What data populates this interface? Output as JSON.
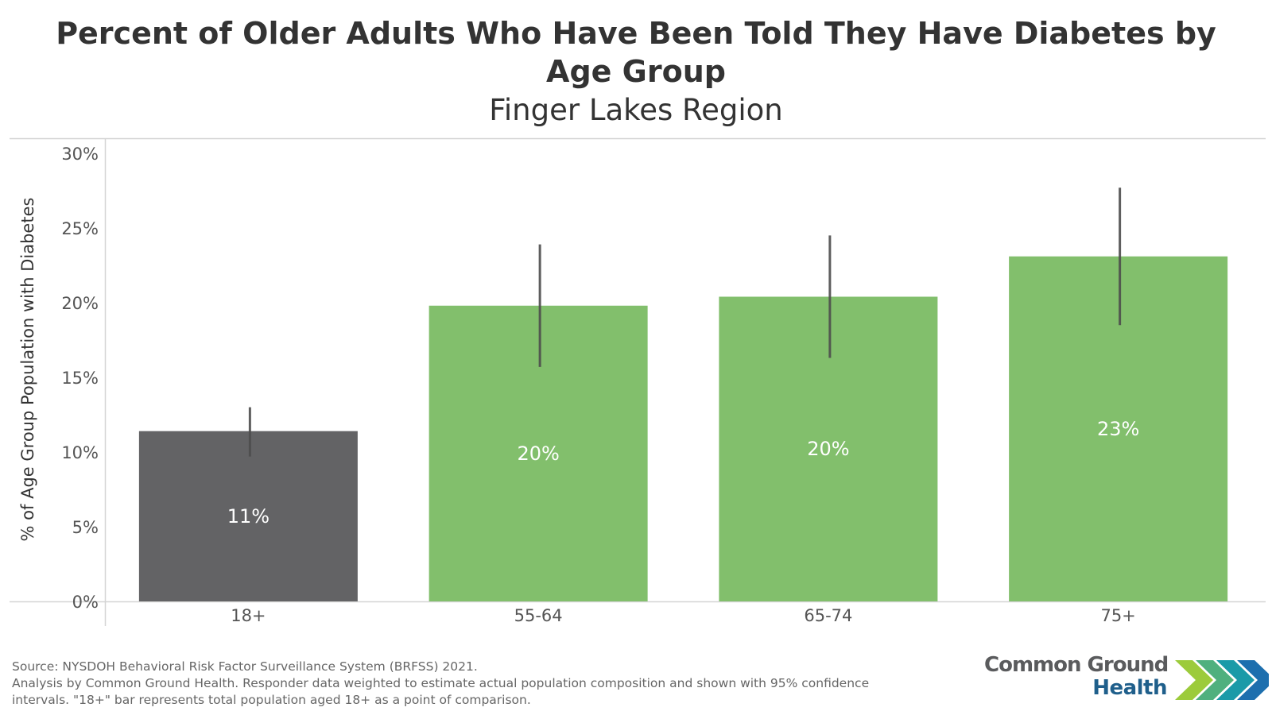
{
  "chart_data": {
    "type": "bar",
    "title": "Percent of Older Adults Who Have Been Told They Have Diabetes by Age Group",
    "title_lines": [
      "Percent of Older Adults Who Have Been Told They Have Diabetes by",
      "Age Group"
    ],
    "subtitle": "Finger Lakes Region",
    "xlabel": "",
    "ylabel": "% of Age Group Population with Diabetes",
    "ylim": [
      0,
      30
    ],
    "yticks": [
      0,
      5,
      10,
      15,
      20,
      25,
      30
    ],
    "ytick_labels": [
      "0%",
      "5%",
      "10%",
      "15%",
      "20%",
      "25%",
      "30%"
    ],
    "categories": [
      "18+",
      "55-64",
      "65-74",
      "75+"
    ],
    "values": [
      11.4,
      19.8,
      20.4,
      23.1
    ],
    "data_labels": [
      "11%",
      "20%",
      "20%",
      "23%"
    ],
    "ci_lower": [
      9.7,
      15.7,
      16.3,
      18.5
    ],
    "ci_upper": [
      13.0,
      23.9,
      24.5,
      27.7
    ],
    "bar_colors": [
      "#636365",
      "#82bf6c",
      "#82bf6c",
      "#82bf6c"
    ],
    "errorbar_color": "#4d4d4d",
    "grid": false,
    "legend": "none"
  },
  "footer": {
    "source_line1": "Source: NYSDOH Behavioral Risk Factor Surveillance System (BRFSS) 2021.",
    "source_line2": "Analysis by Common Ground Health. Responder data weighted to estimate actual population composition and shown with 95% confidence",
    "source_line3": "intervals. \"18+\" bar represents total population aged 18+ as a point of comparison."
  },
  "logo": {
    "line1": "Common Ground",
    "line2": "Health",
    "chevron_colors": [
      "#9ccb3b",
      "#4fb07e",
      "#1a9aa8",
      "#1d6fae",
      "#1f4f86"
    ]
  }
}
